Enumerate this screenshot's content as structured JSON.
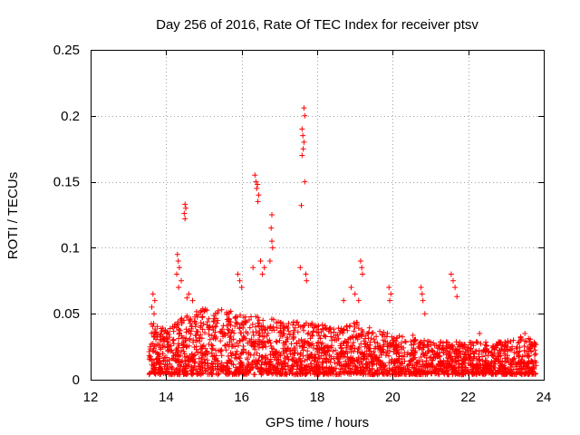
{
  "chart_data": {
    "type": "scatter",
    "title": "Day 256 of 2016, Rate Of TEC Index for receiver ptsv",
    "xlabel": "GPS time / hours",
    "ylabel": "ROTI / TECUs",
    "xlim": [
      12,
      24
    ],
    "ylim": [
      0,
      0.25
    ],
    "xticks": [
      12,
      14,
      16,
      18,
      20,
      22,
      24
    ],
    "xtick_labels": [
      "12",
      "14",
      "16",
      "18",
      "20",
      "22",
      "24"
    ],
    "yticks": [
      0,
      0.05,
      0.1,
      0.15,
      0.2,
      0.25
    ],
    "ytick_labels": [
      "0",
      "0.05",
      "0.1",
      "0.15",
      "0.2",
      "0.25"
    ],
    "grid": true,
    "marker": "+",
    "color": "#ff0000",
    "series": [
      {
        "name": "ROTI",
        "x_range": [
          13.55,
          23.8
        ],
        "baseline_upper": [
          [
            13.6,
            0.04
          ],
          [
            14.0,
            0.035
          ],
          [
            14.5,
            0.045
          ],
          [
            15.0,
            0.05
          ],
          [
            15.5,
            0.05
          ],
          [
            16.0,
            0.045
          ],
          [
            16.5,
            0.045
          ],
          [
            17.0,
            0.04
          ],
          [
            17.5,
            0.04
          ],
          [
            18.0,
            0.04
          ],
          [
            18.5,
            0.035
          ],
          [
            19.0,
            0.04
          ],
          [
            19.5,
            0.035
          ],
          [
            20.0,
            0.03
          ],
          [
            20.5,
            0.03
          ],
          [
            21.0,
            0.025
          ],
          [
            21.5,
            0.025
          ],
          [
            22.0,
            0.025
          ],
          [
            22.5,
            0.025
          ],
          [
            23.0,
            0.025
          ],
          [
            23.5,
            0.03
          ],
          [
            23.8,
            0.025
          ]
        ],
        "outliers": [
          [
            13.65,
            0.065
          ],
          [
            13.7,
            0.06
          ],
          [
            13.62,
            0.055
          ],
          [
            13.68,
            0.05
          ],
          [
            14.3,
            0.095
          ],
          [
            14.32,
            0.09
          ],
          [
            14.35,
            0.085
          ],
          [
            14.28,
            0.08
          ],
          [
            14.4,
            0.075
          ],
          [
            14.33,
            0.07
          ],
          [
            14.5,
            0.133
          ],
          [
            14.52,
            0.13
          ],
          [
            14.48,
            0.126
          ],
          [
            14.5,
            0.122
          ],
          [
            14.6,
            0.065
          ],
          [
            14.7,
            0.06
          ],
          [
            14.55,
            0.062
          ],
          [
            15.9,
            0.08
          ],
          [
            15.95,
            0.075
          ],
          [
            16.0,
            0.07
          ],
          [
            16.35,
            0.155
          ],
          [
            16.38,
            0.15
          ],
          [
            16.42,
            0.148
          ],
          [
            16.4,
            0.145
          ],
          [
            16.45,
            0.14
          ],
          [
            16.43,
            0.135
          ],
          [
            16.3,
            0.085
          ],
          [
            16.5,
            0.09
          ],
          [
            16.6,
            0.085
          ],
          [
            16.55,
            0.08
          ],
          [
            16.8,
            0.125
          ],
          [
            16.78,
            0.115
          ],
          [
            16.8,
            0.105
          ],
          [
            16.82,
            0.1
          ],
          [
            16.75,
            0.09
          ],
          [
            17.65,
            0.206
          ],
          [
            17.67,
            0.2
          ],
          [
            17.6,
            0.19
          ],
          [
            17.62,
            0.185
          ],
          [
            17.65,
            0.18
          ],
          [
            17.63,
            0.175
          ],
          [
            17.6,
            0.17
          ],
          [
            17.67,
            0.15
          ],
          [
            17.58,
            0.132
          ],
          [
            17.7,
            0.08
          ],
          [
            17.72,
            0.075
          ],
          [
            17.55,
            0.085
          ],
          [
            18.7,
            0.06
          ],
          [
            18.9,
            0.07
          ],
          [
            19.0,
            0.065
          ],
          [
            19.1,
            0.06
          ],
          [
            19.15,
            0.09
          ],
          [
            19.18,
            0.085
          ],
          [
            19.2,
            0.08
          ],
          [
            19.9,
            0.07
          ],
          [
            19.95,
            0.065
          ],
          [
            19.92,
            0.06
          ],
          [
            20.75,
            0.07
          ],
          [
            20.78,
            0.065
          ],
          [
            20.8,
            0.06
          ],
          [
            20.85,
            0.05
          ],
          [
            21.55,
            0.08
          ],
          [
            21.6,
            0.075
          ],
          [
            21.65,
            0.07
          ],
          [
            21.7,
            0.063
          ],
          [
            22.3,
            0.035
          ],
          [
            23.5,
            0.035
          ]
        ]
      }
    ]
  }
}
